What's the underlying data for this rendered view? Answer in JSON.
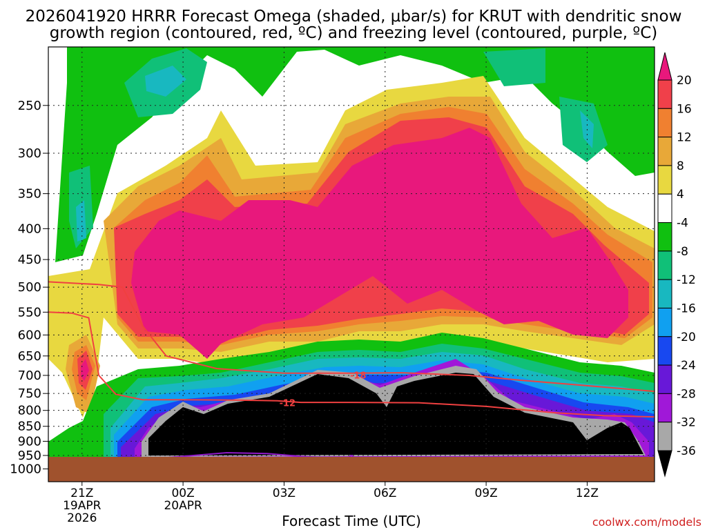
{
  "chart_data": {
    "type": "heatmap",
    "title_line1": "2026041920 HRRR Forecast Omega (shaded, μbar/s) for KRUT with dendritic snow",
    "title_line2": "growth region (contoured, red, ºC) and freezing level (contoured, purple, ºC)",
    "xlabel": "Forecast Time (UTC)",
    "ylabel": "",
    "credit": "coolwx.com/models",
    "x_ticks": [
      {
        "label": "21Z",
        "date": "19APR",
        "year": "2026",
        "hour": 21
      },
      {
        "label": "00Z",
        "date": "20APR",
        "year": "",
        "hour": 24
      },
      {
        "label": "03Z",
        "date": "",
        "year": "",
        "hour": 27
      },
      {
        "label": "06Z",
        "date": "",
        "year": "",
        "hour": 30
      },
      {
        "label": "09Z",
        "date": "",
        "year": "",
        "hour": 33
      },
      {
        "label": "12Z",
        "date": "",
        "year": "",
        "hour": 36
      }
    ],
    "x_range_hours": [
      20,
      38
    ],
    "y_ticks": [
      "250",
      "300",
      "350",
      "400",
      "450",
      "500",
      "550",
      "600",
      "650",
      "700",
      "750",
      "800",
      "850",
      "900",
      "950",
      "1000"
    ],
    "y_scale": "log-pressure",
    "y_range_hPa": [
      1050,
      200
    ],
    "grid": true,
    "colorbar": {
      "labels": [
        "20",
        "16",
        "12",
        "8",
        "4",
        "-4",
        "-8",
        "-12",
        "-16",
        "-20",
        "-24",
        "-28",
        "-32",
        "-36"
      ],
      "bins": [
        {
          "min": 20,
          "max": null,
          "color": "#e8187c"
        },
        {
          "min": 16,
          "max": 20,
          "color": "#f0404a"
        },
        {
          "min": 12,
          "max": 16,
          "color": "#f08030"
        },
        {
          "min": 8,
          "max": 12,
          "color": "#e8a838"
        },
        {
          "min": 4,
          "max": 8,
          "color": "#e8d840"
        },
        {
          "min": -4,
          "max": 4,
          "color": "#ffffff"
        },
        {
          "min": -8,
          "max": -4,
          "color": "#10c010"
        },
        {
          "min": -12,
          "max": -8,
          "color": "#10c078"
        },
        {
          "min": -16,
          "max": -12,
          "color": "#18b8c0"
        },
        {
          "min": -20,
          "max": -16,
          "color": "#10a0f0"
        },
        {
          "min": -24,
          "max": -20,
          "color": "#1848f0"
        },
        {
          "min": -28,
          "max": -24,
          "color": "#6818d8"
        },
        {
          "min": -32,
          "max": -28,
          "color": "#a018d8"
        },
        {
          "min": -36,
          "max": -32,
          "color": "#a8a8a8"
        },
        {
          "min": null,
          "max": -36,
          "color": "#000000"
        }
      ]
    },
    "series": [
      {
        "name": "-18",
        "color": "#f04040",
        "points": [
          [
            20,
            490
          ],
          [
            21.5,
            495
          ],
          [
            22.2,
            500
          ],
          [
            22.8,
            580
          ],
          [
            23.5,
            650
          ],
          [
            25,
            682
          ],
          [
            27,
            694
          ],
          [
            29,
            694
          ],
          [
            30.5,
            693
          ],
          [
            32.5,
            700
          ],
          [
            34,
            713
          ],
          [
            36,
            728
          ],
          [
            38,
            744
          ]
        ]
      },
      {
        "name": "-12",
        "color": "#f04040",
        "points": [
          [
            20,
            550
          ],
          [
            20.7,
            552
          ],
          [
            21.2,
            562
          ],
          [
            21.5,
            700
          ],
          [
            22,
            752
          ],
          [
            22.8,
            768
          ],
          [
            24,
            768
          ],
          [
            25.5,
            769
          ],
          [
            26.8,
            771
          ],
          [
            27.5,
            776
          ],
          [
            29,
            776
          ],
          [
            31,
            777
          ],
          [
            33,
            788
          ],
          [
            35,
            807
          ],
          [
            36.5,
            816
          ],
          [
            38,
            820
          ]
        ]
      },
      {
        "name": "0",
        "color": "#9018c8",
        "points": [
          [
            20.8,
            968
          ],
          [
            22,
            962
          ],
          [
            23.5,
            958
          ],
          [
            24.5,
            948
          ],
          [
            25.3,
            940
          ],
          [
            26.5,
            943
          ],
          [
            27.5,
            953
          ],
          [
            28.3,
            958
          ],
          [
            29,
            960
          ],
          [
            30.5,
            962
          ],
          [
            32,
            966
          ],
          [
            34,
            967
          ],
          [
            36,
            968
          ],
          [
            37.5,
            967
          ]
        ]
      }
    ],
    "contour_labels": [
      {
        "text": "-18",
        "x": 29.2,
        "y": 699
      },
      {
        "text": "-12",
        "x": 27.1,
        "y": 777
      },
      {
        "text": "0",
        "x": 29.0,
        "y": 960
      }
    ],
    "surface_pressure_hPa": 965
  }
}
